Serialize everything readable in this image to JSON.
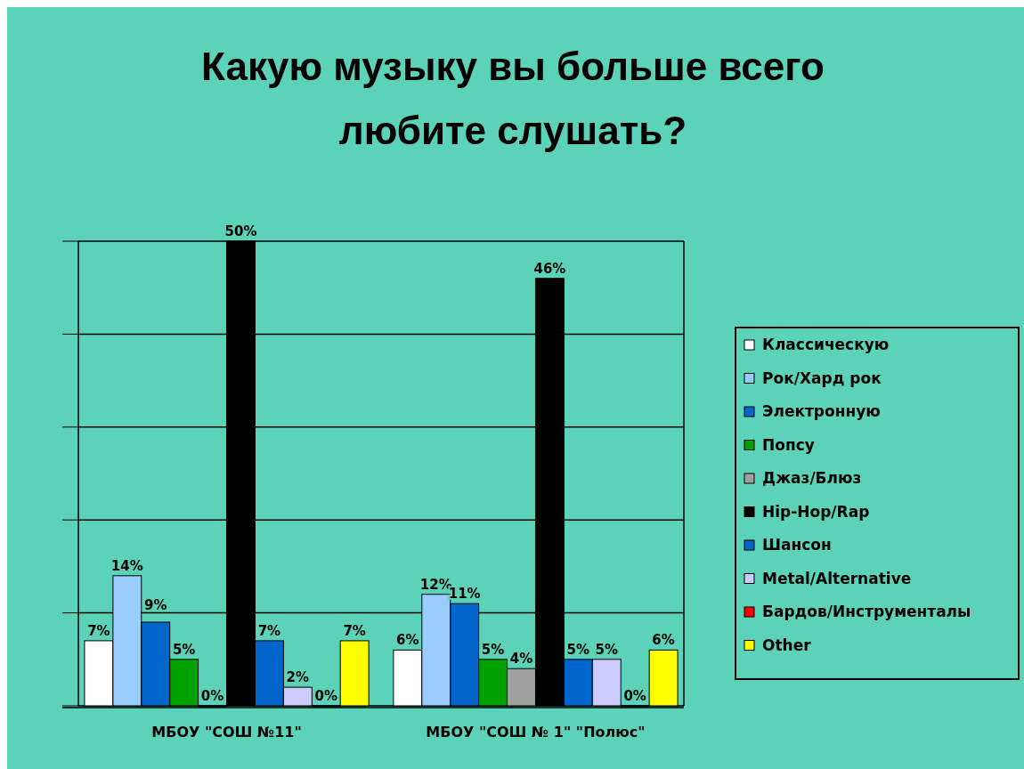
{
  "chart_data": {
    "type": "bar",
    "title": "Какую музыку вы больше всего любите слушать?",
    "categories": [
      "МБОУ \"СОШ №11\"",
      "МБОУ \"СОШ № 1\" \"Полюс\""
    ],
    "series": [
      {
        "name": "Классическую",
        "color": "#ffffff",
        "values": [
          7,
          6
        ],
        "value_labels": [
          "7%",
          "6%"
        ]
      },
      {
        "name": "Рок/Хард рок",
        "color": "#99ccff",
        "values": [
          14,
          12
        ],
        "value_labels": [
          "14%",
          "12%"
        ]
      },
      {
        "name": "Электронную",
        "color": "#0066cc",
        "values": [
          9,
          11
        ],
        "value_labels": [
          "9%",
          "11%"
        ]
      },
      {
        "name": "Попсу",
        "color": "#00a000",
        "values": [
          5,
          5
        ],
        "value_labels": [
          "5%",
          "5%"
        ]
      },
      {
        "name": "Джаз/Блюз",
        "color": "#a0a0a0",
        "values": [
          0,
          4
        ],
        "value_labels": [
          "0%",
          "4%"
        ]
      },
      {
        "name": "Hip-Hop/Rap",
        "color": "#000000",
        "values": [
          50,
          46
        ],
        "value_labels": [
          "50%",
          "46%"
        ]
      },
      {
        "name": "Шансон",
        "color": "#0066cc",
        "values": [
          7,
          5
        ],
        "value_labels": [
          "7%",
          "5%"
        ]
      },
      {
        "name": "Metal/Alternative",
        "color": "#ccccff",
        "values": [
          2,
          5
        ],
        "value_labels": [
          "2%",
          "5%"
        ]
      },
      {
        "name": "Бардов/Инструменталы",
        "color": "#ff0000",
        "values": [
          0,
          0
        ],
        "value_labels": [
          "0%",
          "0%"
        ]
      },
      {
        "name": "Other",
        "color": "#ffff00",
        "values": [
          7,
          6
        ],
        "value_labels": [
          "7%",
          "6%"
        ]
      }
    ],
    "ylim": [
      0,
      50
    ],
    "yticks": [
      {
        "value": 0,
        "label": null
      },
      {
        "value": 10,
        "label": null
      },
      {
        "value": 20,
        "label": null
      },
      {
        "value": 30,
        "label": null
      },
      {
        "value": 40,
        "label": null
      },
      {
        "value": 50,
        "label": null
      }
    ],
    "grid": "y",
    "tick_labels": "x",
    "legend": "right"
  }
}
